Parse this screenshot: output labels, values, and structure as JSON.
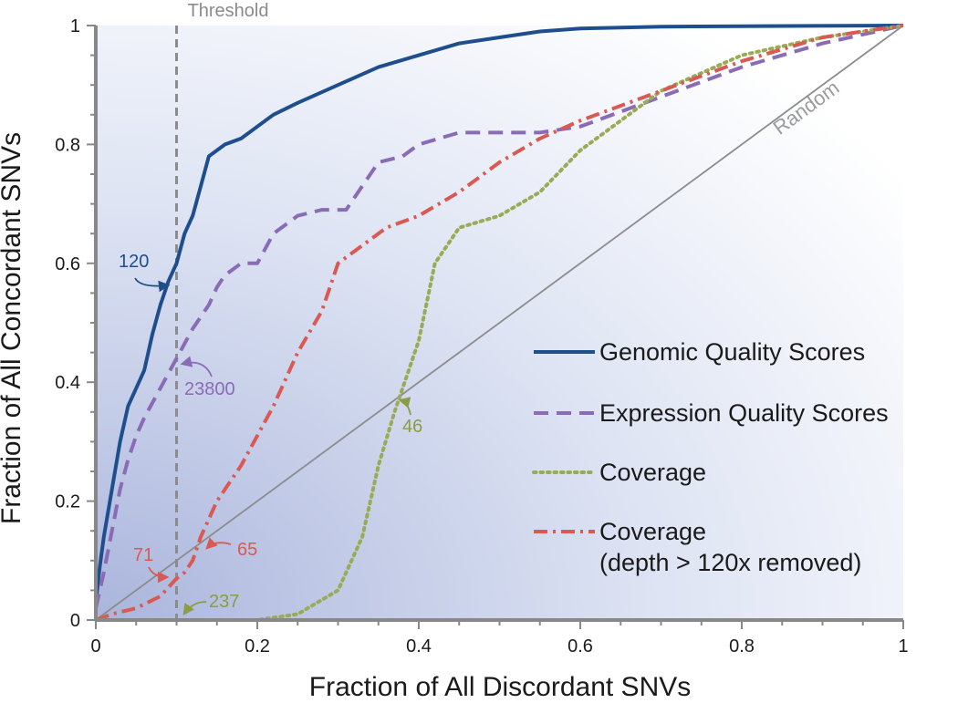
{
  "chart_data": {
    "type": "line",
    "xlabel": "Fraction of All Discordant SNVs",
    "ylabel": "Fraction of All Concordant SNVs",
    "xlim": [
      0,
      1
    ],
    "ylim": [
      0,
      1
    ],
    "x_ticks": [
      "0",
      "0.2",
      "0.4",
      "0.6",
      "0.8",
      "1"
    ],
    "y_ticks": [
      "0",
      "0.2",
      "0.4",
      "0.6",
      "0.8",
      "1"
    ],
    "threshold": {
      "x": 0.1,
      "label": "Threshold"
    },
    "random_line": {
      "label": "Random"
    },
    "series": [
      {
        "name": "Genomic Quality Scores",
        "color": "#1f4e8c",
        "style": "solid",
        "x": [
          0,
          0.005,
          0.01,
          0.02,
          0.03,
          0.04,
          0.05,
          0.06,
          0.07,
          0.08,
          0.09,
          0.1,
          0.11,
          0.12,
          0.13,
          0.14,
          0.15,
          0.16,
          0.18,
          0.2,
          0.22,
          0.25,
          0.3,
          0.35,
          0.4,
          0.45,
          0.5,
          0.55,
          0.6,
          0.7,
          0.8,
          1.0
        ],
        "y": [
          0.03,
          0.09,
          0.14,
          0.22,
          0.3,
          0.36,
          0.39,
          0.42,
          0.48,
          0.53,
          0.57,
          0.6,
          0.65,
          0.68,
          0.73,
          0.78,
          0.79,
          0.8,
          0.81,
          0.83,
          0.85,
          0.87,
          0.9,
          0.93,
          0.95,
          0.97,
          0.98,
          0.99,
          0.995,
          0.998,
          0.999,
          1.0
        ]
      },
      {
        "name": "Expression Quality Scores",
        "color": "#8a6bb5",
        "style": "dashed",
        "x": [
          0,
          0.01,
          0.02,
          0.03,
          0.04,
          0.05,
          0.06,
          0.08,
          0.1,
          0.12,
          0.14,
          0.15,
          0.16,
          0.18,
          0.2,
          0.22,
          0.25,
          0.28,
          0.31,
          0.33,
          0.35,
          0.38,
          0.4,
          0.45,
          0.5,
          0.55,
          0.6,
          0.7,
          0.8,
          0.9,
          1.0
        ],
        "y": [
          0.02,
          0.08,
          0.15,
          0.22,
          0.27,
          0.31,
          0.34,
          0.39,
          0.44,
          0.49,
          0.53,
          0.56,
          0.58,
          0.6,
          0.6,
          0.65,
          0.68,
          0.69,
          0.69,
          0.73,
          0.77,
          0.78,
          0.8,
          0.82,
          0.82,
          0.82,
          0.83,
          0.88,
          0.93,
          0.97,
          1.0
        ]
      },
      {
        "name": "Coverage",
        "color": "#9aab55",
        "style": "dotted",
        "x": [
          0,
          0.1,
          0.2,
          0.25,
          0.3,
          0.33,
          0.35,
          0.37,
          0.38,
          0.4,
          0.42,
          0.45,
          0.5,
          0.55,
          0.6,
          0.65,
          0.7,
          0.8,
          0.9,
          1.0
        ],
        "y": [
          0,
          0,
          0,
          0.01,
          0.05,
          0.14,
          0.26,
          0.35,
          0.39,
          0.47,
          0.6,
          0.66,
          0.68,
          0.72,
          0.79,
          0.84,
          0.89,
          0.95,
          0.98,
          1.0
        ]
      },
      {
        "name": "Coverage\n(depth > 120x removed)",
        "color": "#d95a52",
        "style": "dashdot",
        "x": [
          0,
          0.02,
          0.05,
          0.08,
          0.1,
          0.11,
          0.12,
          0.13,
          0.15,
          0.18,
          0.2,
          0.22,
          0.25,
          0.28,
          0.3,
          0.33,
          0.36,
          0.4,
          0.45,
          0.5,
          0.55,
          0.6,
          0.7,
          0.8,
          0.9,
          1.0
        ],
        "y": [
          0,
          0.01,
          0.02,
          0.04,
          0.07,
          0.08,
          0.1,
          0.14,
          0.2,
          0.26,
          0.31,
          0.36,
          0.45,
          0.52,
          0.6,
          0.63,
          0.66,
          0.68,
          0.72,
          0.77,
          0.81,
          0.84,
          0.89,
          0.94,
          0.98,
          1.0
        ]
      }
    ],
    "annotations": [
      {
        "text": "120",
        "series": "Genomic Quality Scores",
        "x": 0.1,
        "y": 0.6
      },
      {
        "text": "23800",
        "series": "Expression Quality Scores",
        "x": 0.1,
        "y": 0.44
      },
      {
        "text": "46",
        "series": "Coverage",
        "x": 0.38,
        "y": 0.39
      },
      {
        "text": "65",
        "series": "Coverage\n(depth > 120x removed)",
        "x": 0.13,
        "y": 0.12
      },
      {
        "text": "71",
        "series": "Coverage\n(depth > 120x removed)",
        "x": 0.1,
        "y": 0.07
      },
      {
        "text": "237",
        "series": "Coverage",
        "x": 0.1,
        "y": 0.0
      }
    ]
  }
}
